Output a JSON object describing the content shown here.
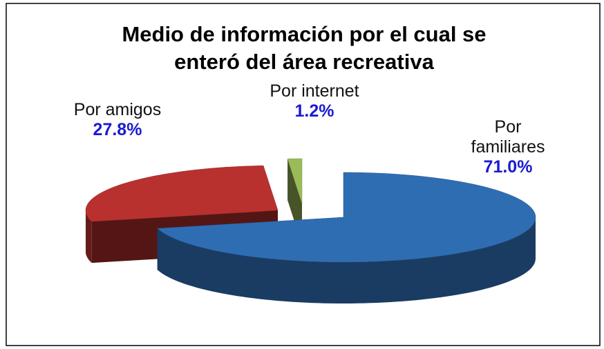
{
  "chart_data": {
    "type": "pie",
    "title": "Medio de información por el cual se enteró del área recreativa",
    "categories": [
      "Por familiares",
      "Por amigos",
      "Por internet"
    ],
    "values": [
      71.0,
      27.8,
      1.2
    ],
    "value_labels": [
      "71.0%",
      "27.8%",
      "1.2%"
    ],
    "colors": [
      "#2f6db3",
      "#b8312f",
      "#9bbb59"
    ]
  }
}
